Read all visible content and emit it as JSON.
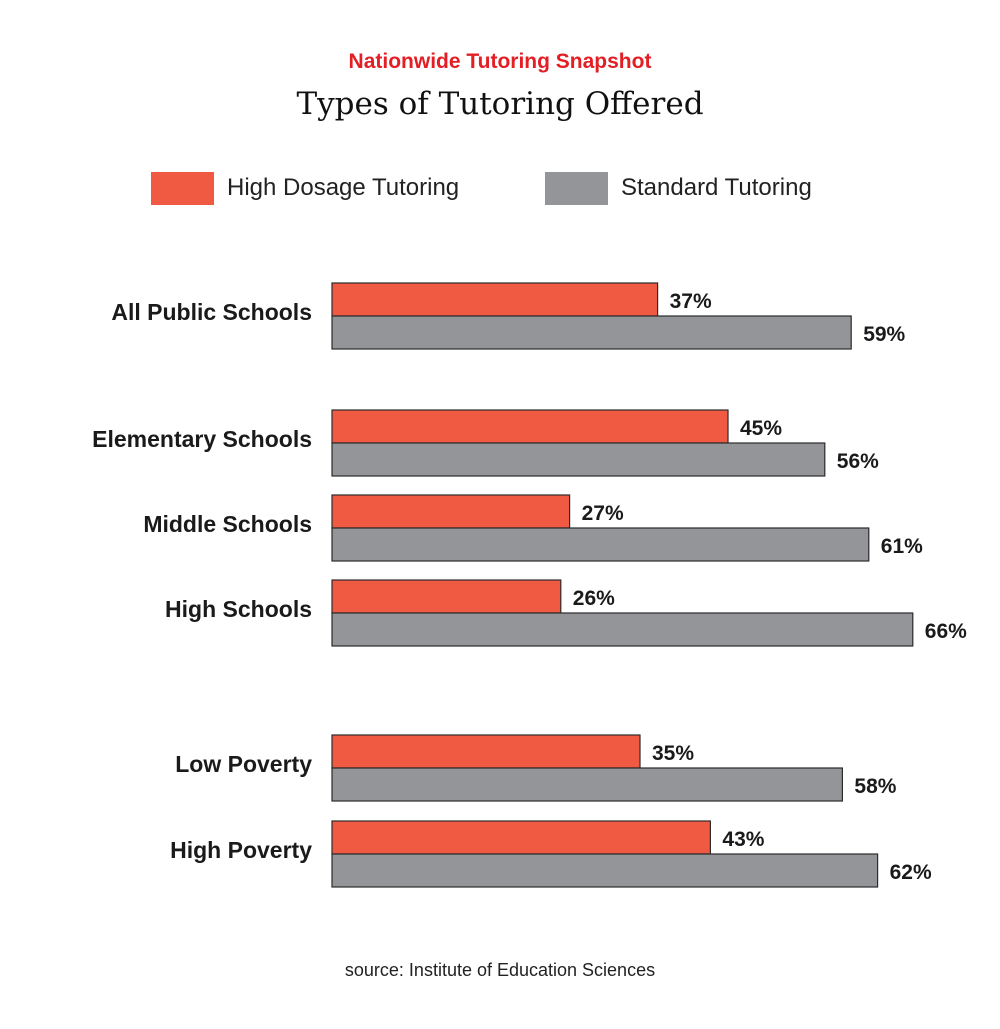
{
  "header": {
    "kicker": "Nationwide Tutoring Snapshot",
    "kicker_color": "#e31e24"
  },
  "source_note": "source: Institute of Education Sciences",
  "chart_data": {
    "type": "bar",
    "orientation": "horizontal",
    "title": "Types of Tutoring Offered",
    "xlabel": "",
    "ylabel": "",
    "xlim": [
      0,
      100
    ],
    "grid": false,
    "legend_position": "top",
    "value_suffix": "%",
    "categories": [
      "All Public Schools",
      "Elementary Schools",
      "Middle Schools",
      "High Schools",
      "Low Poverty",
      "High Poverty"
    ],
    "series": [
      {
        "name": "High Dosage Tutoring",
        "color": "#f05a42",
        "values": [
          37,
          45,
          27,
          26,
          35,
          43
        ]
      },
      {
        "name": "Standard Tutoring",
        "color": "#939598",
        "values": [
          59,
          56,
          61,
          66,
          58,
          62
        ]
      }
    ]
  }
}
